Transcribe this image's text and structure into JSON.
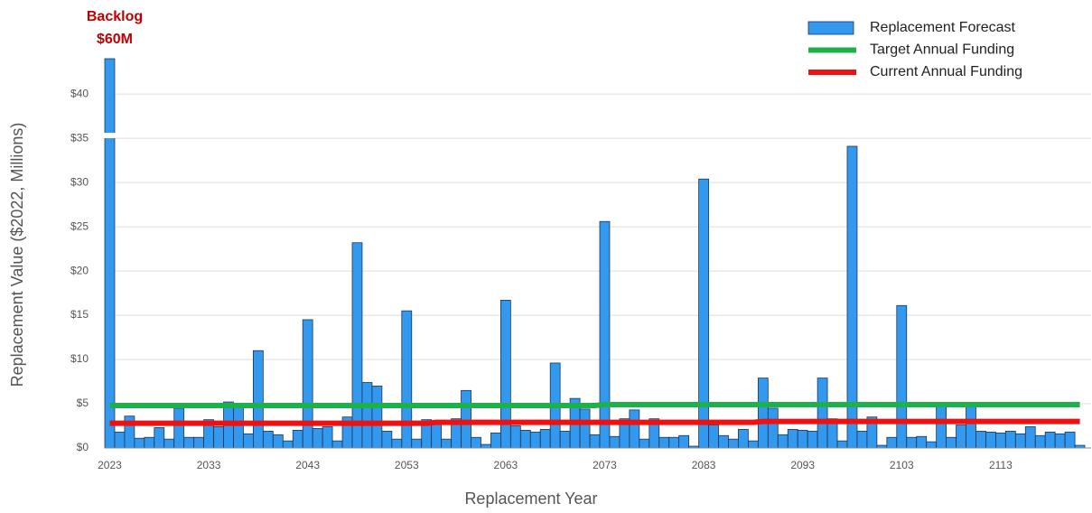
{
  "chart_data": {
    "type": "bar",
    "annotations": [
      "Backlog",
      "$60M"
    ],
    "x_label": "Replacement Year",
    "y_label": "Replacement Value ($2022, Millions)",
    "categories": [
      "2023",
      null,
      null,
      null,
      null,
      null,
      null,
      null,
      null,
      null,
      "2033",
      null,
      null,
      null,
      null,
      null,
      null,
      null,
      null,
      null,
      "2043",
      null,
      null,
      null,
      null,
      null,
      null,
      null,
      null,
      null,
      "2053",
      null,
      null,
      null,
      null,
      null,
      null,
      null,
      null,
      null,
      "2063",
      null,
      null,
      null,
      null,
      null,
      null,
      null,
      null,
      null,
      "2073",
      null,
      null,
      null,
      null,
      null,
      null,
      null,
      null,
      null,
      "2083",
      null,
      null,
      null,
      null,
      null,
      null,
      null,
      null,
      null,
      "2093",
      null,
      null,
      null,
      null,
      null,
      null,
      null,
      null,
      null,
      "2103",
      null,
      null,
      null,
      null,
      null,
      null,
      null,
      null,
      null,
      "2113",
      null,
      null,
      null,
      null,
      null,
      null,
      null,
      null
    ],
    "series": [
      {
        "name": "Replacement Forecast",
        "type": "bar",
        "color": "#3399ee",
        "values": [
          44,
          1.8,
          3.6,
          1.1,
          1.2,
          2.3,
          1.0,
          4.5,
          1.2,
          1.2,
          3.2,
          2.4,
          5.2,
          4.8,
          1.6,
          11.0,
          1.9,
          1.5,
          0.8,
          2.0,
          14.5,
          2.2,
          2.4,
          0.8,
          3.5,
          23.2,
          7.4,
          7.0,
          1.9,
          1.0,
          15.5,
          1.0,
          3.2,
          3.0,
          1.0,
          3.3,
          6.5,
          1.2,
          0.4,
          1.7,
          16.7,
          2.5,
          2.0,
          1.8,
          2.1,
          9.6,
          1.9,
          5.6,
          4.4,
          1.5,
          25.6,
          1.3,
          3.3,
          4.3,
          1.0,
          3.3,
          1.2,
          1.2,
          1.4,
          0.2,
          30.4,
          2.6,
          1.4,
          1.0,
          2.1,
          0.8,
          7.9,
          4.5,
          1.5,
          2.1,
          2.0,
          1.9,
          7.9,
          3.3,
          0.8,
          34.1,
          1.9,
          3.5,
          0.3,
          1.2,
          16.1,
          1.2,
          1.3,
          0.7,
          4.8,
          1.2,
          2.6,
          4.8,
          1.9,
          1.8,
          1.7,
          1.9,
          1.6,
          2.4,
          1.4,
          1.8,
          1.6,
          1.8,
          0.3
        ]
      },
      {
        "name": "Target Annual Funding",
        "type": "line",
        "color": "#1db14b",
        "values": [
          4.8,
          4.8,
          4.8,
          4.8,
          4.8,
          4.8,
          4.8,
          4.8,
          4.8,
          4.8,
          4.8,
          4.8,
          4.8,
          4.8,
          4.8,
          4.8,
          4.8,
          4.8,
          4.8,
          4.8,
          4.8,
          4.8,
          4.8,
          4.8,
          4.8,
          4.8,
          4.8,
          4.8,
          4.8,
          4.8,
          4.8,
          4.8,
          4.8,
          4.8,
          4.8,
          4.8,
          4.8,
          4.8,
          4.8,
          4.8,
          4.8,
          4.8,
          4.8,
          4.8,
          4.8,
          4.8,
          4.8,
          4.8,
          4.8,
          4.8,
          4.9,
          4.9,
          4.9,
          4.9,
          4.9,
          4.9,
          4.9,
          4.9,
          4.9,
          4.9,
          4.9,
          4.9,
          4.9,
          4.9,
          4.9,
          4.9,
          4.9,
          4.9,
          4.9,
          4.9,
          4.9,
          4.9,
          4.9,
          4.9,
          4.9,
          4.9,
          4.9,
          4.9,
          4.9,
          4.9,
          4.9,
          4.9,
          4.9,
          4.9,
          4.9,
          4.9,
          4.9,
          4.9,
          4.9,
          4.9,
          4.9,
          4.9,
          4.9,
          4.9,
          4.9,
          4.9,
          4.9,
          4.9,
          4.9
        ]
      },
      {
        "name": "Current Annual Funding",
        "type": "line",
        "color": "#ee1111",
        "values": [
          2.8,
          2.8,
          2.8,
          2.8,
          2.8,
          2.8,
          2.8,
          2.8,
          2.8,
          2.8,
          2.8,
          2.8,
          2.8,
          2.8,
          2.8,
          2.8,
          2.8,
          2.8,
          2.8,
          2.8,
          2.8,
          2.8,
          2.8,
          2.8,
          2.8,
          2.8,
          2.8,
          2.8,
          2.8,
          2.8,
          2.8,
          2.8,
          2.8,
          2.9,
          2.9,
          2.9,
          2.9,
          2.9,
          2.9,
          2.9,
          2.9,
          2.9,
          2.9,
          2.9,
          2.9,
          2.9,
          2.9,
          2.9,
          2.9,
          2.9,
          2.9,
          2.9,
          2.9,
          2.9,
          2.9,
          2.9,
          2.9,
          2.9,
          2.9,
          2.9,
          2.9,
          2.9,
          2.9,
          2.9,
          2.9,
          2.9,
          3.0,
          3.0,
          3.0,
          3.0,
          3.0,
          3.0,
          3.0,
          3.0,
          3.0,
          3.0,
          3.0,
          3.0,
          3.0,
          3.0,
          3.0,
          3.0,
          3.0,
          3.0,
          3.0,
          3.0,
          3.0,
          3.0,
          3.0,
          3.0,
          3.0,
          3.0,
          3.0,
          3.0,
          3.0,
          3.0,
          3.0,
          3.0,
          3.0
        ]
      }
    ],
    "ylim": [
      0,
      44
    ],
    "yticks": [
      {
        "value": 0,
        "label": "$0"
      },
      {
        "value": 5,
        "label": "$5"
      },
      {
        "value": 10,
        "label": "$10"
      },
      {
        "value": 15,
        "label": "$15"
      },
      {
        "value": 20,
        "label": "$20"
      },
      {
        "value": 25,
        "label": "$25"
      },
      {
        "value": 30,
        "label": "$30"
      },
      {
        "value": 35,
        "label": "$35"
      },
      {
        "value": 40,
        "label": "$40"
      }
    ],
    "grid": true,
    "legend": "top-right"
  }
}
